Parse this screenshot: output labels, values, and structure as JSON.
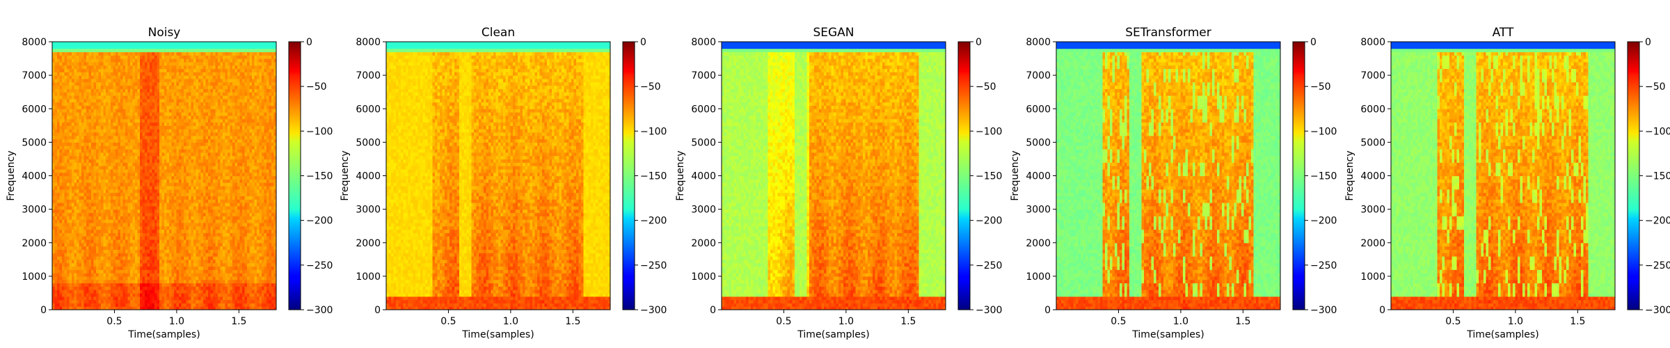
{
  "chart_data": {
    "type": "heatmap",
    "panels": [
      {
        "title": "Noisy",
        "xlabel": "Time(samples)",
        "ylabel": "Frequency",
        "xticks": [
          0.5,
          1.0,
          1.5
        ],
        "yticks": [
          0,
          1000,
          2000,
          3000,
          4000,
          5000,
          6000,
          7000,
          8000
        ],
        "xlim": [
          0,
          1.8
        ],
        "ylim": [
          0,
          8000
        ],
        "colorbar": {
          "ticks": [
            0,
            -50,
            -100,
            -150,
            -200,
            -250,
            -300
          ],
          "range": [
            -300,
            0
          ],
          "colormap": "jet"
        }
      },
      {
        "title": "Clean",
        "xlabel": "Time(samples)",
        "ylabel": "Frequency",
        "xticks": [
          0.5,
          1.0,
          1.5
        ],
        "yticks": [
          0,
          1000,
          2000,
          3000,
          4000,
          5000,
          6000,
          7000,
          8000
        ],
        "xlim": [
          0,
          1.8
        ],
        "ylim": [
          0,
          8000
        ],
        "colorbar": {
          "ticks": [
            0,
            -50,
            -100,
            -150,
            -200,
            -250,
            -300
          ],
          "range": [
            -300,
            0
          ],
          "colormap": "jet"
        }
      },
      {
        "title": "SEGAN",
        "xlabel": "Time(samples)",
        "ylabel": "Frequency",
        "xticks": [
          0.5,
          1.0,
          1.5
        ],
        "yticks": [
          0,
          1000,
          2000,
          3000,
          4000,
          5000,
          6000,
          7000,
          8000
        ],
        "xlim": [
          0,
          1.8
        ],
        "ylim": [
          0,
          8000
        ],
        "colorbar": {
          "ticks": [
            0,
            -50,
            -100,
            -150,
            -200,
            -250,
            -300
          ],
          "range": [
            -300,
            0
          ],
          "colormap": "jet"
        }
      },
      {
        "title": "SETransformer",
        "xlabel": "Time(samples)",
        "ylabel": "Frequency",
        "xticks": [
          0.5,
          1.0,
          1.5
        ],
        "yticks": [
          0,
          1000,
          2000,
          3000,
          4000,
          5000,
          6000,
          7000,
          8000
        ],
        "xlim": [
          0,
          1.8
        ],
        "ylim": [
          0,
          8000
        ],
        "colorbar": {
          "ticks": [
            0,
            -50,
            -100,
            -150,
            -200,
            -250,
            -300
          ],
          "range": [
            -300,
            0
          ],
          "colormap": "jet"
        }
      },
      {
        "title": "ATT",
        "xlabel": "Time(samples)",
        "ylabel": "Frequency",
        "xticks": [
          0.5,
          1.0,
          1.5
        ],
        "yticks": [
          0,
          1000,
          2000,
          3000,
          4000,
          5000,
          6000,
          7000,
          8000
        ],
        "xlim": [
          0,
          1.8
        ],
        "ylim": [
          0,
          8000
        ],
        "colorbar": {
          "ticks": [
            0,
            -50,
            -100,
            -150,
            -200,
            -250,
            -300
          ],
          "range": [
            -300,
            0
          ],
          "colormap": "jet"
        }
      }
    ]
  }
}
